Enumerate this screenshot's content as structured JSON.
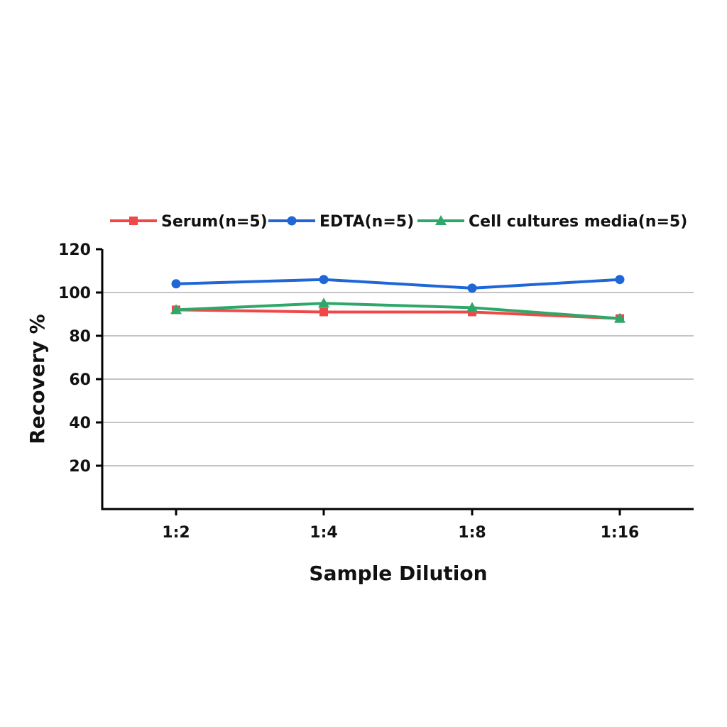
{
  "chart_data": {
    "type": "line",
    "title": "",
    "xlabel": "Sample Dilution",
    "ylabel": "Recovery %",
    "categories": [
      "1:2",
      "1:4",
      "1:8",
      "1:16"
    ],
    "ylim": [
      0,
      120
    ],
    "yticks": [
      20,
      40,
      60,
      80,
      100,
      120
    ],
    "grid": true,
    "legend_position": "top",
    "series": [
      {
        "name": "Serum(n=5)",
        "color": "#f04848",
        "marker": "square",
        "values": [
          92,
          91,
          91,
          88
        ]
      },
      {
        "name": "EDTA(n=5)",
        "color": "#1f66d6",
        "marker": "circle",
        "values": [
          104,
          106,
          102,
          106
        ]
      },
      {
        "name": "Cell cultures media(n=5)",
        "color": "#2ea86a",
        "marker": "triangle",
        "values": [
          92,
          95,
          93,
          88
        ]
      }
    ]
  }
}
